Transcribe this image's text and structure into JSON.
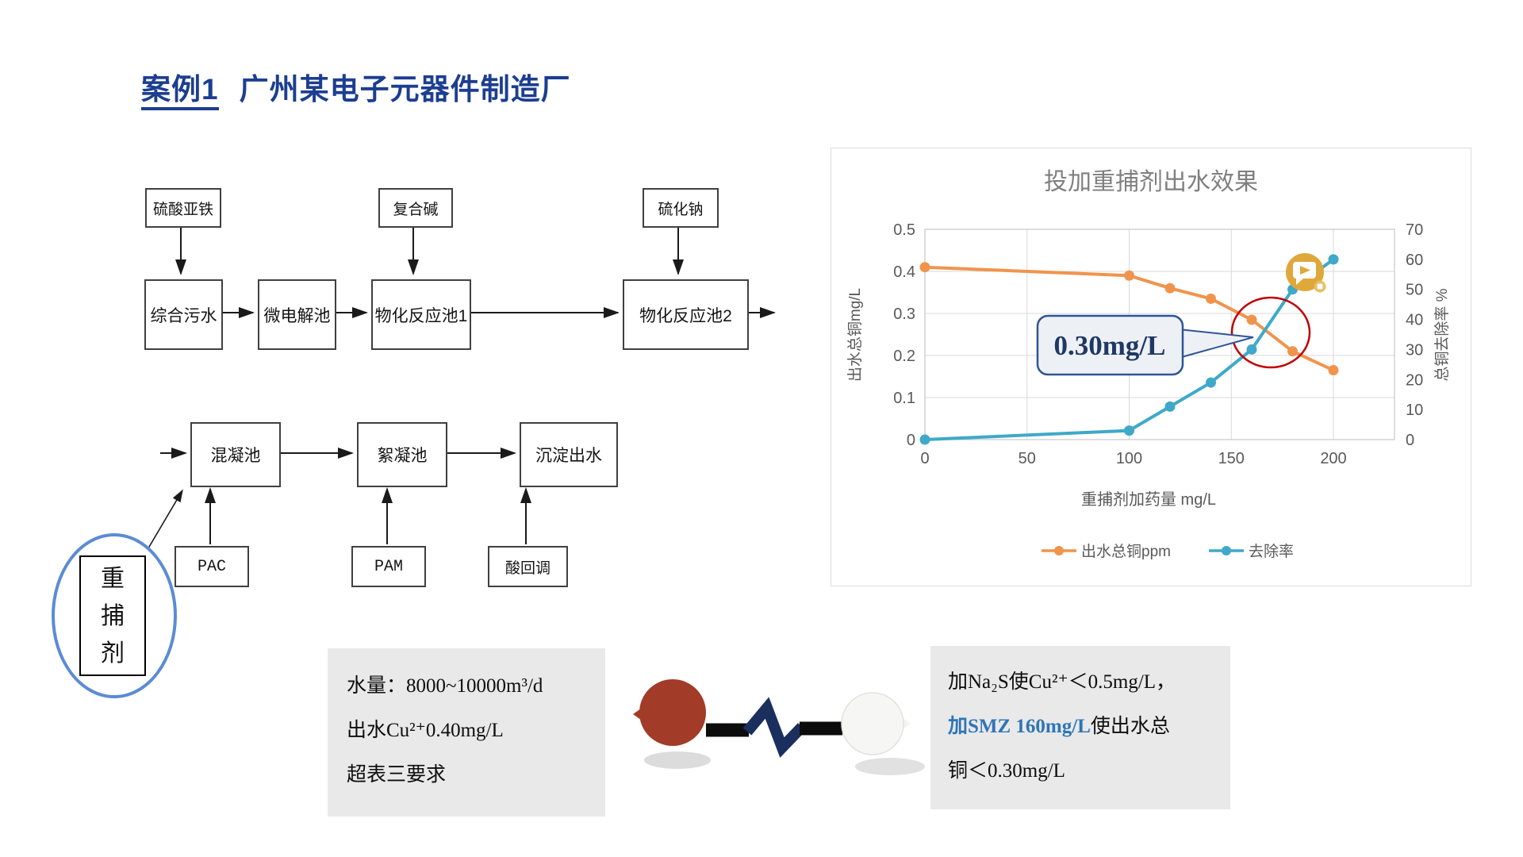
{
  "slide": {
    "title_case": "案例1",
    "title_name": "广州某电子元器件制造厂"
  },
  "colors": {
    "title": "#1c3e91",
    "ellipse_accent": "#5b8bd5",
    "note_highlight": "#2e75b6",
    "callout_border": "#2f5596",
    "callout_text": "#1f3864",
    "circle_annotation": "#c00000",
    "media_badge": "#dfa83b",
    "note_background": "#e9e9e9"
  },
  "flowchart": {
    "boxes": {
      "ferrous_sulfate": "硫酸亚铁",
      "compound_alkali": "复合碱",
      "sodium_sulfide": "硫化钠",
      "combined_wastewater": "综合污水",
      "micro_electrolysis": "微电解池",
      "physchem_tank1": "物化反应池1",
      "physchem_tank2": "物化反应池2",
      "coagulation_tank": "混凝池",
      "flocculation_tank": "絮凝池",
      "settled_effluent": "沉淀出水",
      "pac": "PAC",
      "pam": "PAM",
      "acid_readjust": "酸回调",
      "heavy_metal_catcher": "重捕剂"
    }
  },
  "chart_data": {
    "type": "line",
    "title": "投加重捕剂出水效果",
    "xlabel": "重捕剂加药量 mg/L",
    "ylabel_left": "出水总铜mg/L",
    "ylabel_right": "总铜去除率 %",
    "xlim": [
      0,
      230
    ],
    "x_ticks": [
      0,
      50,
      100,
      150,
      200
    ],
    "ylim_left": [
      0,
      0.5
    ],
    "y_ticks_left": [
      0,
      0.1,
      0.2,
      0.3,
      0.4,
      0.5
    ],
    "ylim_right": [
      0,
      70
    ],
    "y_ticks_right": [
      0,
      10,
      20,
      30,
      40,
      50,
      60,
      70
    ],
    "grid": true,
    "legend_position": "bottom",
    "series": [
      {
        "name": "出水总铜ppm",
        "axis": "left",
        "color": "#f0944d",
        "points": [
          [
            0,
            0.41
          ],
          [
            100,
            0.39
          ],
          [
            120,
            0.36
          ],
          [
            140,
            0.335
          ],
          [
            160,
            0.285
          ],
          [
            180,
            0.21
          ],
          [
            200,
            0.165
          ]
        ]
      },
      {
        "name": "去除率",
        "axis": "right",
        "color": "#3fa9c9",
        "points": [
          [
            0,
            0
          ],
          [
            100,
            3
          ],
          [
            120,
            11
          ],
          [
            140,
            19
          ],
          [
            160,
            30
          ],
          [
            180,
            50
          ],
          [
            200,
            60
          ]
        ]
      }
    ],
    "annotation": {
      "text": "0.30mg/L"
    }
  },
  "notes": {
    "left": {
      "line1": "水量：8000~10000m³/d",
      "line2": "出水Cu²⁺0.40mg/L",
      "line3": "超表三要求"
    },
    "right": {
      "line1": "加Na₂S使Cu²⁺＜0.5mg/L，",
      "line2_highlight": "加SMZ 160mg/L",
      "line2_rest": "使出水总",
      "line3": "铜＜0.30mg/L"
    }
  }
}
